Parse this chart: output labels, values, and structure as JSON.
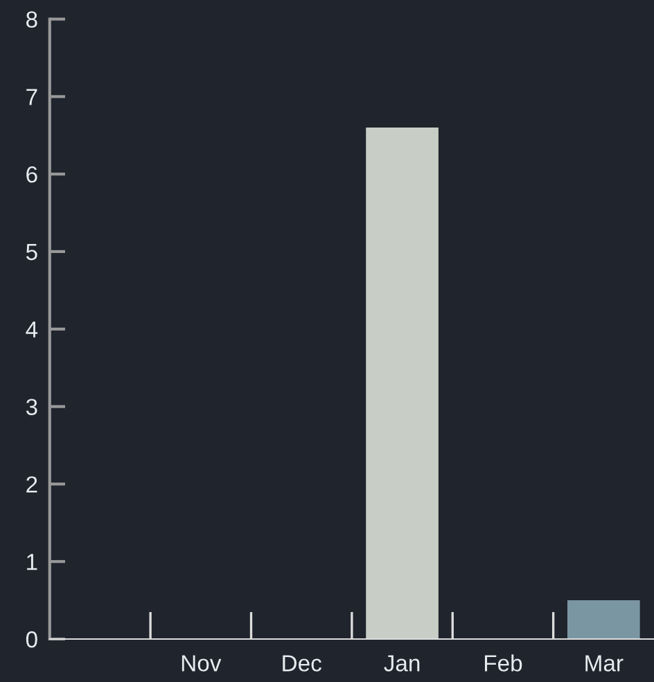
{
  "chart_data": {
    "type": "bar",
    "categories": [
      null,
      "Nov",
      "Dec",
      "Jan",
      "Feb",
      "Mar"
    ],
    "values": [
      0,
      0,
      0,
      6.6,
      0,
      0.5
    ],
    "colors": [
      "#c8cec6",
      "#c8cec6",
      "#c8cec6",
      "#c8cec6",
      "#c8cec6",
      "#7a96a3"
    ],
    "ylim": [
      0,
      8
    ],
    "yticks": [
      0,
      1,
      2,
      3,
      4,
      5,
      6,
      7,
      8
    ],
    "grid": false,
    "legend": false
  }
}
